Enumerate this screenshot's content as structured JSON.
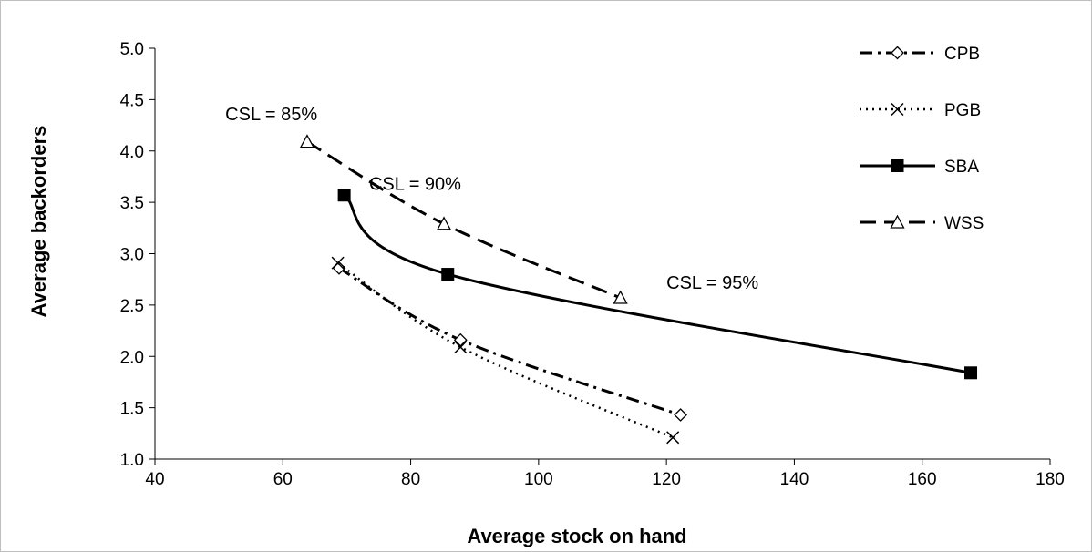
{
  "chart_data": {
    "type": "line",
    "xlabel": "Average stock on hand",
    "ylabel": "Average backorders",
    "xlim": [
      40,
      180
    ],
    "ylim": [
      1.0,
      5.0
    ],
    "xticks": [
      "40",
      "60",
      "80",
      "100",
      "120",
      "140",
      "160",
      "180"
    ],
    "yticks": [
      "1.0",
      "1.5",
      "2.0",
      "2.5",
      "3.0",
      "3.5",
      "4.0",
      "4.5",
      "5.0"
    ],
    "grid": false,
    "legend": "top-right",
    "series": [
      {
        "name": "CPB",
        "line_style": "dash-dot",
        "marker": "diamond",
        "color": "#000000",
        "x": [
          68.8,
          87.8,
          122.2
        ],
        "y": [
          2.86,
          2.16,
          1.43
        ]
      },
      {
        "name": "PGB",
        "line_style": "dotted",
        "marker": "x",
        "color": "#000000",
        "x": [
          68.6,
          87.8,
          121.0
        ],
        "y": [
          2.91,
          2.09,
          1.21
        ]
      },
      {
        "name": "SBA",
        "line_style": "solid",
        "marker": "filled-square",
        "color": "#000000",
        "x": [
          69.6,
          85.8,
          167.6
        ],
        "y": [
          3.57,
          2.8,
          1.84
        ]
      },
      {
        "name": "WSS",
        "line_style": "dashed",
        "marker": "triangle",
        "color": "#000000",
        "x": [
          63.8,
          85.2,
          112.8
        ],
        "y": [
          4.09,
          3.29,
          2.57
        ]
      }
    ],
    "annotations": [
      {
        "text": "CSL = 85%",
        "x": 51,
        "y": 4.3
      },
      {
        "text": "CSL = 90%",
        "x": 73.5,
        "y": 3.62
      },
      {
        "text": "CSL = 95%",
        "x": 120,
        "y": 2.66
      }
    ]
  }
}
